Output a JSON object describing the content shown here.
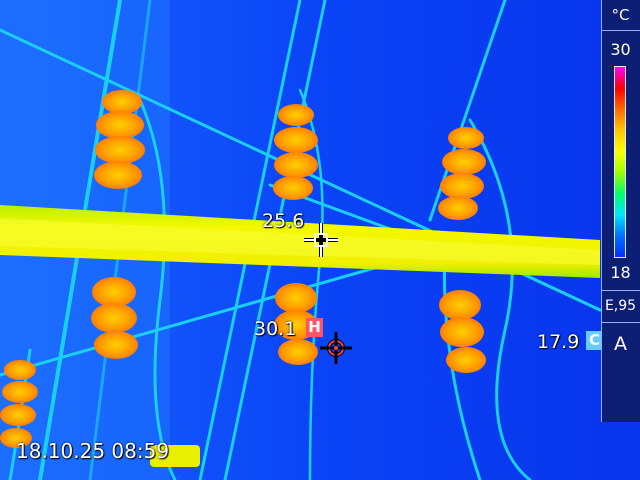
{
  "scale": {
    "unit": "°C",
    "max": "30",
    "min": "18",
    "gradient": [
      "#ff00ff",
      "#ff0000",
      "#ff6a00",
      "#ffc800",
      "#ffff00",
      "#9cff00",
      "#00ff66",
      "#00e6ff",
      "#0070ff",
      "#0030ff"
    ]
  },
  "emissivity": "E,95",
  "spots": {
    "center": {
      "value": "25.6"
    },
    "hot": {
      "value": "30.1",
      "badge": "H",
      "badge_bg": "#ff5566"
    },
    "cold": {
      "value": "17.9",
      "badge": "C",
      "badge_bg": "#66ccff"
    }
  },
  "mode_letter": "A",
  "timestamp": "18.10.25 08:59",
  "colors": {
    "background": "#0a3cf0",
    "cool": "#12c8f0",
    "warm": "#f0f000",
    "hot": "#ff8a00"
  }
}
